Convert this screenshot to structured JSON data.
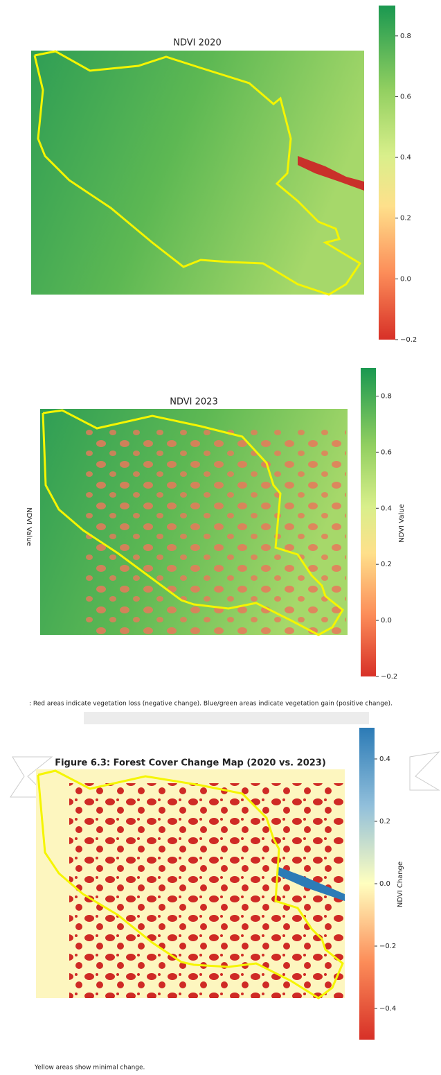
{
  "figures": [
    {
      "title": "NDVI 2020",
      "colorbar": {
        "lim": [
          -0.2,
          0.9
        ],
        "ticks": [
          {
            "value": -0.2,
            "label": "−0.2"
          },
          {
            "value": 0,
            "label": "0.0"
          },
          0.2,
          0.4,
          0.6,
          0.8
        ]
      }
    },
    {
      "title": "NDVI 2023",
      "colorbar": {
        "label": "NDVI Value",
        "lim": [
          -0.2,
          0.9
        ],
        "ticks": [
          {
            "value": -0.2,
            "label": "−0.2"
          },
          {
            "value": 0,
            "label": "0.0"
          },
          0.2,
          0.4,
          0.6,
          0.8
        ]
      }
    },
    {
      "title": "Figure 6.3: Forest Cover Change Map (2020 vs. 2023)",
      "colorbar": {
        "label": "NDVI Change",
        "lim": [
          -0.5,
          0.5
        ],
        "ticks": [
          {
            "value": -0.4,
            "label": "−0.4"
          },
          {
            "value": -0.2,
            "label": "−0.2"
          },
          {
            "value": 0,
            "label": "0.0"
          },
          0.2,
          0.4
        ]
      }
    }
  ],
  "captions": [
    ": Red areas indicate vegetation loss (negative change). Blue/green areas indicate vegetation gain (positive change).",
    "Yellow areas show minimal change."
  ]
}
